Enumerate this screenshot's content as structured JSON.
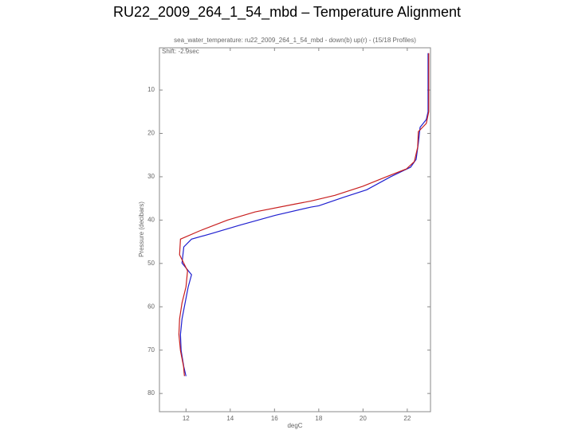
{
  "chart_data": {
    "type": "line",
    "title": "RU22_2009_264_1_54_mbd – Temperature Alignment",
    "subtitle": "sea_water_temperature: ru22_2009_264_1_54_mbd - down(b) up(r) - (15/18 Profiles)",
    "annotation": "Shift: -2.9sec",
    "x_label": "degC",
    "y_label": "Pressure (decibars)",
    "xlim": [
      10.8,
      23.05
    ],
    "ylim": [
      0.25,
      84.2
    ],
    "y_inverted": true,
    "xticks": [
      12,
      14,
      16,
      18,
      20,
      22
    ],
    "yticks": [
      10,
      20,
      30,
      40,
      50,
      60,
      70,
      80
    ],
    "grid": false,
    "series": [
      {
        "color": "#1f1fd0",
        "x": [
          22.94,
          22.94,
          22.86,
          22.58,
          22.5,
          22.4,
          22.15,
          21.25,
          20.17,
          19.09,
          18.0,
          17.65,
          16.03,
          14.41,
          13.15,
          12.25,
          11.9,
          11.82,
          12.25,
          12.1,
          11.96,
          11.82,
          11.75,
          11.78,
          11.9,
          12.0
        ],
        "values": [
          1.5,
          15,
          16.8,
          18.6,
          22.3,
          26,
          27.8,
          30,
          33,
          34.8,
          36.7,
          37,
          38.9,
          41.2,
          43.1,
          44.4,
          46.2,
          49.9,
          52.6,
          55.4,
          59.1,
          62.8,
          66.4,
          70.1,
          73.8,
          76
        ]
      },
      {
        "color": "#c81e1e",
        "x": [
          22.97,
          22.97,
          22.86,
          22.5,
          22.47,
          22.32,
          21.96,
          21.06,
          19.99,
          18.73,
          17.65,
          16.93,
          15.13,
          13.87,
          12.61,
          11.75,
          11.71,
          12.07,
          12.0,
          11.82,
          11.71,
          11.68,
          11.75,
          11.89,
          11.93
        ],
        "values": [
          1.5,
          15,
          17.7,
          19.6,
          23.2,
          26.5,
          28.2,
          30,
          32.2,
          34.3,
          35.6,
          36.3,
          38.1,
          40,
          42.5,
          44.4,
          48,
          51.7,
          55.4,
          59.1,
          62.8,
          66.4,
          70.1,
          73.8,
          76
        ]
      }
    ]
  }
}
